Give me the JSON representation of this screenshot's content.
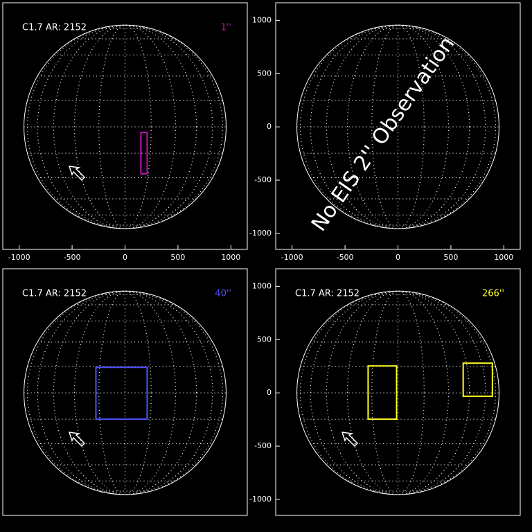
{
  "chart_data": [
    {
      "type": "disk",
      "label": "C1.7 AR: 2152",
      "resolution": "1''",
      "color": "#c010c0",
      "xlim": [
        -1155,
        1155
      ],
      "ylim": [
        -1150,
        1165
      ],
      "xticks": [
        -1000,
        -500,
        0,
        500,
        1000
      ],
      "disk_radius": 955,
      "boxes": [
        {
          "x": [
            150,
            209
          ],
          "y": [
            -440,
            -52
          ]
        }
      ]
    },
    {
      "type": "disk",
      "annotation": "No EIS 2'' Observation",
      "xlim": [
        -1155,
        1155
      ],
      "ylim": [
        -1150,
        1165
      ],
      "xticks": [
        -1000,
        -500,
        0,
        500,
        1000
      ],
      "yticks": [
        -1000,
        -500,
        0,
        500,
        1000
      ],
      "disk_radius": 955
    },
    {
      "type": "disk",
      "label": "C1.7 AR: 2152",
      "resolution": "40''",
      "color": "#5050ff",
      "xlim": [
        -1155,
        1155
      ],
      "ylim": [
        -1150,
        1165
      ],
      "disk_radius": 955,
      "boxes": [
        {
          "x": [
            -275,
            209
          ],
          "y": [
            -247,
            240
          ]
        }
      ]
    },
    {
      "type": "disk",
      "label": "C1.7 AR: 2152",
      "resolution": "266''",
      "color": "#ffff20",
      "xlim": [
        -1155,
        1155
      ],
      "ylim": [
        -1150,
        1165
      ],
      "yticks": [
        -1000,
        -500,
        0,
        500,
        1000
      ],
      "disk_radius": 955,
      "boxes": [
        {
          "x": [
            -282,
            -13
          ],
          "y": [
            -247,
            253
          ]
        },
        {
          "x": [
            616,
            892
          ],
          "y": [
            -32,
            279
          ]
        }
      ]
    }
  ]
}
